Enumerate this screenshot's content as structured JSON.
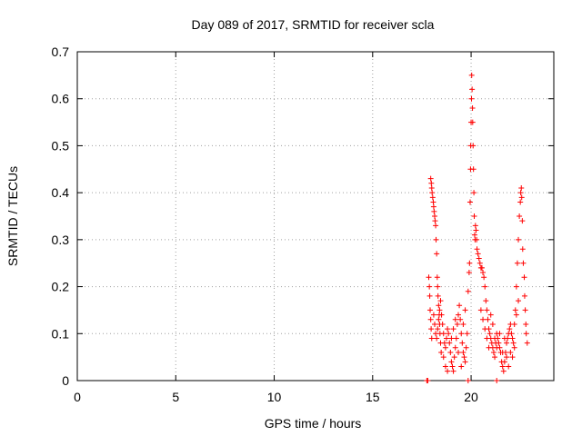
{
  "chart_data": {
    "type": "scatter",
    "title": "Day 089 of 2017, SRMTID for receiver scla",
    "xlabel": "GPS time / hours",
    "ylabel": "SRMTID / TECUs",
    "xlim": [
      0,
      24.2
    ],
    "ylim": [
      0,
      0.7
    ],
    "xticks": [
      0,
      5,
      10,
      15,
      20
    ],
    "yticks": [
      0,
      0.1,
      0.2,
      0.3,
      0.4,
      0.5,
      0.6,
      0.7
    ],
    "grid": true,
    "marker": "plus",
    "color": "#ff0000",
    "series": [
      {
        "name": "scla",
        "points": [
          [
            17.75,
            0.0
          ],
          [
            17.8,
            0.0
          ],
          [
            17.85,
            0.22
          ],
          [
            17.88,
            0.2
          ],
          [
            17.9,
            0.18
          ],
          [
            17.92,
            0.15
          ],
          [
            17.95,
            0.13
          ],
          [
            17.97,
            0.11
          ],
          [
            18.0,
            0.09
          ],
          [
            17.95,
            0.43
          ],
          [
            17.98,
            0.42
          ],
          [
            18.0,
            0.41
          ],
          [
            18.02,
            0.4
          ],
          [
            18.05,
            0.39
          ],
          [
            18.08,
            0.38
          ],
          [
            18.1,
            0.37
          ],
          [
            18.12,
            0.36
          ],
          [
            18.15,
            0.35
          ],
          [
            18.17,
            0.34
          ],
          [
            18.2,
            0.33
          ],
          [
            18.22,
            0.3
          ],
          [
            18.25,
            0.27
          ],
          [
            18.28,
            0.22
          ],
          [
            18.3,
            0.2
          ],
          [
            18.32,
            0.18
          ],
          [
            18.35,
            0.16
          ],
          [
            18.38,
            0.14
          ],
          [
            18.4,
            0.12
          ],
          [
            18.42,
            0.1
          ],
          [
            18.45,
            0.08
          ],
          [
            18.48,
            0.06
          ],
          [
            18.1,
            0.14
          ],
          [
            18.15,
            0.12
          ],
          [
            18.2,
            0.1
          ],
          [
            18.25,
            0.09
          ],
          [
            18.3,
            0.11
          ],
          [
            18.35,
            0.13
          ],
          [
            18.4,
            0.15
          ],
          [
            18.45,
            0.17
          ],
          [
            18.5,
            0.14
          ],
          [
            18.55,
            0.12
          ],
          [
            18.6,
            0.1
          ],
          [
            18.65,
            0.08
          ],
          [
            18.7,
            0.07
          ],
          [
            18.75,
            0.09
          ],
          [
            18.8,
            0.11
          ],
          [
            18.85,
            0.1
          ],
          [
            18.9,
            0.08
          ],
          [
            18.95,
            0.06
          ],
          [
            19.0,
            0.04
          ],
          [
            19.05,
            0.03
          ],
          [
            19.1,
            0.02
          ],
          [
            19.15,
            0.05
          ],
          [
            19.2,
            0.07
          ],
          [
            19.25,
            0.09
          ],
          [
            19.3,
            0.12
          ],
          [
            19.35,
            0.14
          ],
          [
            19.4,
            0.16
          ],
          [
            19.45,
            0.13
          ],
          [
            19.5,
            0.1
          ],
          [
            19.55,
            0.08
          ],
          [
            19.6,
            0.06
          ],
          [
            19.65,
            0.05
          ],
          [
            19.7,
            0.04
          ],
          [
            19.75,
            0.07
          ],
          [
            19.8,
            0.1
          ],
          [
            19.85,
            0.19
          ],
          [
            19.9,
            0.23
          ],
          [
            19.92,
            0.25
          ],
          [
            19.95,
            0.38
          ],
          [
            19.97,
            0.45
          ],
          [
            19.98,
            0.5
          ],
          [
            20.0,
            0.55
          ],
          [
            20.02,
            0.6
          ],
          [
            20.03,
            0.65
          ],
          [
            20.05,
            0.62
          ],
          [
            20.07,
            0.58
          ],
          [
            20.08,
            0.55
          ],
          [
            20.1,
            0.5
          ],
          [
            20.12,
            0.45
          ],
          [
            20.14,
            0.4
          ],
          [
            20.16,
            0.35
          ],
          [
            20.18,
            0.31
          ],
          [
            20.2,
            0.3
          ],
          [
            20.22,
            0.33
          ],
          [
            20.25,
            0.32
          ],
          [
            20.28,
            0.3
          ],
          [
            20.3,
            0.28
          ],
          [
            20.35,
            0.27
          ],
          [
            20.4,
            0.26
          ],
          [
            20.45,
            0.25
          ],
          [
            20.5,
            0.24
          ],
          [
            20.55,
            0.24
          ],
          [
            20.6,
            0.23
          ],
          [
            20.65,
            0.22
          ],
          [
            20.7,
            0.2
          ],
          [
            20.75,
            0.17
          ],
          [
            20.8,
            0.15
          ],
          [
            20.85,
            0.13
          ],
          [
            20.9,
            0.11
          ],
          [
            20.95,
            0.1
          ],
          [
            21.0,
            0.09
          ],
          [
            21.05,
            0.08
          ],
          [
            21.1,
            0.07
          ],
          [
            21.15,
            0.06
          ],
          [
            21.2,
            0.05
          ],
          [
            21.25,
            0.08
          ],
          [
            21.3,
            0.1
          ],
          [
            21.35,
            0.09
          ],
          [
            21.4,
            0.08
          ],
          [
            21.45,
            0.07
          ],
          [
            21.5,
            0.06
          ],
          [
            21.55,
            0.04
          ],
          [
            21.6,
            0.03
          ],
          [
            21.65,
            0.02
          ],
          [
            21.7,
            0.04
          ],
          [
            21.75,
            0.06
          ],
          [
            21.8,
            0.08
          ],
          [
            21.85,
            0.09
          ],
          [
            21.9,
            0.1
          ],
          [
            21.95,
            0.11
          ],
          [
            22.0,
            0.12
          ],
          [
            22.05,
            0.1
          ],
          [
            22.1,
            0.09
          ],
          [
            22.15,
            0.08
          ],
          [
            22.2,
            0.12
          ],
          [
            22.25,
            0.15
          ],
          [
            22.3,
            0.2
          ],
          [
            22.35,
            0.25
          ],
          [
            22.4,
            0.3
          ],
          [
            22.45,
            0.35
          ],
          [
            22.5,
            0.38
          ],
          [
            22.52,
            0.4
          ],
          [
            22.55,
            0.41
          ],
          [
            22.57,
            0.39
          ],
          [
            22.6,
            0.34
          ],
          [
            22.62,
            0.28
          ],
          [
            22.65,
            0.25
          ],
          [
            22.7,
            0.22
          ],
          [
            22.72,
            0.18
          ],
          [
            22.75,
            0.15
          ],
          [
            22.78,
            0.12
          ],
          [
            22.8,
            0.1
          ],
          [
            22.85,
            0.08
          ],
          [
            18.6,
            0.05
          ],
          [
            18.7,
            0.03
          ],
          [
            18.8,
            0.02
          ],
          [
            19.0,
            0.09
          ],
          [
            19.1,
            0.11
          ],
          [
            19.2,
            0.13
          ],
          [
            19.35,
            0.06
          ],
          [
            19.5,
            0.03
          ],
          [
            19.6,
            0.12
          ],
          [
            19.7,
            0.15
          ],
          [
            20.6,
            0.13
          ],
          [
            20.7,
            0.11
          ],
          [
            20.8,
            0.09
          ],
          [
            20.9,
            0.07
          ],
          [
            21.2,
            0.09
          ],
          [
            21.3,
            0.07
          ],
          [
            21.45,
            0.1
          ],
          [
            21.6,
            0.06
          ],
          [
            21.7,
            0.09
          ],
          [
            21.8,
            0.05
          ],
          [
            21.9,
            0.03
          ],
          [
            22.0,
            0.06
          ],
          [
            22.1,
            0.05
          ],
          [
            22.2,
            0.07
          ],
          [
            22.3,
            0.14
          ],
          [
            22.4,
            0.17
          ],
          [
            21.3,
            0.0
          ],
          [
            19.85,
            0.0
          ],
          [
            20.5,
            0.15
          ],
          [
            21.0,
            0.14
          ],
          [
            21.1,
            0.12
          ]
        ]
      }
    ]
  }
}
